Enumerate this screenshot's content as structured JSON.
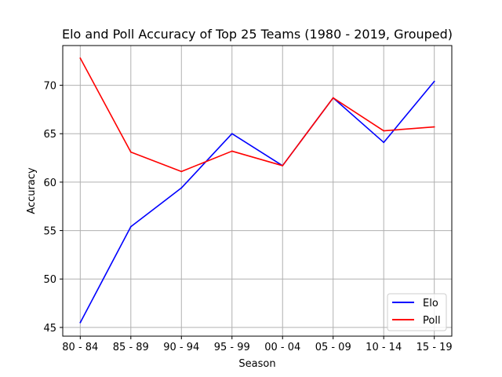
{
  "chart_data": {
    "type": "line",
    "title": "Elo and Poll Accuracy of Top 25 Teams (1980 - 2019, Grouped)",
    "xlabel": "Season",
    "ylabel": "Accuracy",
    "categories": [
      "80 - 84",
      "85 - 89",
      "90 - 94",
      "95 - 99",
      "00 - 04",
      "05 - 09",
      "10 - 14",
      "15 - 19"
    ],
    "ylim": [
      44.1,
      74.1
    ],
    "yticks": [
      45,
      50,
      55,
      60,
      65,
      70
    ],
    "grid": true,
    "legend_position": "lower right",
    "series": [
      {
        "name": "Elo",
        "color": "#0000ff",
        "values": [
          45.5,
          55.4,
          59.4,
          65.0,
          61.7,
          68.7,
          64.1,
          70.4
        ]
      },
      {
        "name": "Poll",
        "color": "#ff0000",
        "values": [
          72.8,
          63.1,
          61.1,
          63.2,
          61.7,
          68.7,
          65.3,
          65.7
        ]
      }
    ]
  }
}
